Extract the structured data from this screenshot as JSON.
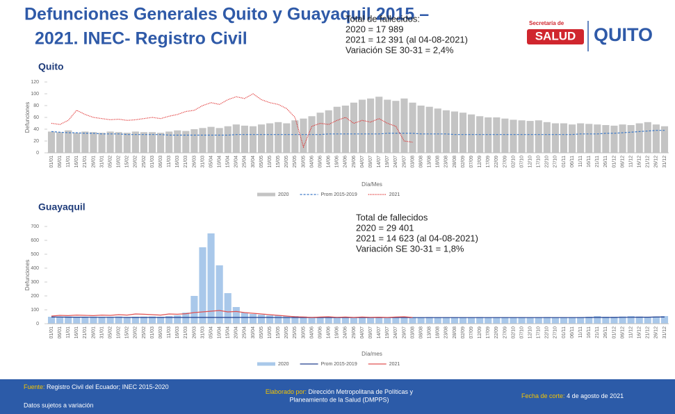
{
  "header": {
    "title_lines": [
      "Defunciones Generales Quito y Guayaquil 2015 –",
      "2021. INEC- Registro Civil"
    ],
    "logo_left_top": "Secretaría de",
    "logo_left_main": "SALUD",
    "logo_right": "QUITO"
  },
  "info_quito": [
    "Total de fallecidos:",
    "2020 = 17 989",
    "2021 = 12 391 (al 04-08-2021)",
    "Variación SE 30-31 = 2,4%"
  ],
  "info_guayaquil": [
    "Total de fallecidos",
    "2020 = 29 401",
    "2021 = 14 623 (al 04-08-2021)",
    "Variación SE 30-31 = 1,8%"
  ],
  "chart_data": [
    {
      "type": "bar",
      "title": "Quito",
      "ylabel": "Defunciones",
      "xlabel": "Día/Mes",
      "ylim": [
        0,
        120
      ],
      "yticks": [
        0,
        20,
        40,
        60,
        80,
        100,
        120
      ],
      "categories": [
        "01/01",
        "06/01",
        "11/01",
        "16/01",
        "21/01",
        "26/01",
        "31/01",
        "05/02",
        "10/02",
        "15/02",
        "20/02",
        "25/02",
        "01/03",
        "06/03",
        "11/03",
        "16/03",
        "21/03",
        "26/03",
        "31/03",
        "05/04",
        "10/04",
        "15/04",
        "20/04",
        "25/04",
        "30/04",
        "05/05",
        "10/05",
        "15/05",
        "20/05",
        "25/05",
        "30/05",
        "04/06",
        "09/06",
        "14/06",
        "19/06",
        "24/06",
        "29/06",
        "04/07",
        "09/07",
        "14/07",
        "19/07",
        "24/07",
        "29/07",
        "03/08",
        "08/08",
        "13/08",
        "18/08",
        "23/08",
        "28/08",
        "02/09",
        "07/09",
        "12/09",
        "17/09",
        "22/09",
        "27/09",
        "02/10",
        "07/10",
        "12/10",
        "17/10",
        "22/10",
        "27/10",
        "01/11",
        "06/11",
        "11/11",
        "16/11",
        "21/11",
        "26/11",
        "01/12",
        "06/12",
        "11/12",
        "16/12",
        "21/12",
        "26/12",
        "31/12"
      ],
      "series": [
        {
          "name": "2020",
          "color": "#c4c4c4",
          "style": "bar",
          "values": [
            36,
            35,
            38,
            34,
            36,
            35,
            34,
            36,
            35,
            34,
            36,
            35,
            35,
            34,
            36,
            38,
            37,
            40,
            42,
            44,
            42,
            45,
            48,
            46,
            45,
            48,
            50,
            52,
            50,
            55,
            58,
            62,
            68,
            72,
            78,
            80,
            85,
            90,
            92,
            95,
            90,
            88,
            92,
            85,
            80,
            78,
            75,
            72,
            70,
            68,
            65,
            62,
            60,
            60,
            58,
            56,
            55,
            54,
            55,
            52,
            50,
            50,
            48,
            50,
            49,
            48,
            47,
            46,
            48,
            47,
            50,
            52,
            48,
            45
          ]
        },
        {
          "name": "Prom 2015-2019",
          "color": "#3a78c8",
          "style": "dashed",
          "values": [
            36,
            35,
            34,
            34,
            33,
            33,
            32,
            32,
            32,
            31,
            31,
            31,
            31,
            31,
            30,
            30,
            30,
            30,
            30,
            30,
            30,
            30,
            31,
            31,
            31,
            31,
            31,
            31,
            31,
            31,
            31,
            31,
            31,
            32,
            32,
            32,
            32,
            32,
            32,
            32,
            33,
            33,
            33,
            33,
            32,
            32,
            32,
            32,
            31,
            31,
            31,
            31,
            31,
            31,
            31,
            31,
            31,
            31,
            31,
            31,
            31,
            31,
            31,
            32,
            32,
            32,
            33,
            33,
            34,
            35,
            36,
            37,
            38,
            38
          ]
        },
        {
          "name": "2021",
          "color": "#e03030",
          "style": "dotted",
          "values": [
            50,
            48,
            55,
            72,
            65,
            60,
            58,
            56,
            57,
            55,
            56,
            58,
            60,
            58,
            62,
            65,
            70,
            72,
            80,
            85,
            82,
            90,
            95,
            92,
            100,
            90,
            85,
            82,
            75,
            60,
            10,
            45,
            50,
            48,
            55,
            60,
            50,
            55,
            52,
            58,
            50,
            45,
            20,
            18,
            null,
            null,
            null,
            null,
            null,
            null,
            null,
            null,
            null,
            null,
            null,
            null,
            null,
            null,
            null,
            null,
            null,
            null,
            null,
            null,
            null,
            null,
            null,
            null,
            null,
            null,
            null,
            null,
            null,
            null
          ]
        }
      ]
    },
    {
      "type": "bar",
      "title": "Guayaquil",
      "ylabel": "Defunciones",
      "xlabel": "Día/mes",
      "ylim": [
        0,
        700
      ],
      "yticks": [
        0,
        100,
        200,
        300,
        400,
        500,
        600,
        700
      ],
      "categories": [
        "01/01",
        "06/01",
        "11/01",
        "16/01",
        "21/01",
        "26/01",
        "31/01",
        "05/02",
        "10/02",
        "15/02",
        "20/02",
        "25/02",
        "01/03",
        "06/03",
        "11/03",
        "16/03",
        "21/03",
        "26/03",
        "31/03",
        "05/04",
        "10/04",
        "15/04",
        "20/04",
        "25/04",
        "30/04",
        "05/05",
        "10/05",
        "15/05",
        "20/05",
        "25/05",
        "30/05",
        "04/06",
        "09/06",
        "14/06",
        "19/06",
        "24/06",
        "29/06",
        "04/07",
        "09/07",
        "14/07",
        "19/07",
        "24/07",
        "29/07",
        "03/08",
        "08/08",
        "13/08",
        "18/08",
        "23/08",
        "28/08",
        "02/09",
        "07/09",
        "12/09",
        "17/09",
        "22/09",
        "27/09",
        "02/10",
        "07/10",
        "12/10",
        "17/10",
        "22/10",
        "27/10",
        "01/11",
        "06/11",
        "11/11",
        "16/11",
        "21/11",
        "26/11",
        "01/12",
        "06/12",
        "11/12",
        "16/12",
        "21/12",
        "26/12",
        "31/12"
      ],
      "series": [
        {
          "name": "2020",
          "color": "#a9c8ea",
          "style": "bar",
          "values": [
            50,
            48,
            52,
            50,
            49,
            51,
            50,
            50,
            52,
            48,
            50,
            51,
            52,
            50,
            55,
            60,
            80,
            200,
            550,
            650,
            420,
            220,
            120,
            80,
            70,
            65,
            60,
            58,
            55,
            55,
            52,
            50,
            50,
            48,
            50,
            48,
            48,
            48,
            47,
            48,
            46,
            47,
            48,
            47,
            46,
            48,
            47,
            46,
            47,
            46,
            47,
            48,
            46,
            47,
            46,
            46,
            47,
            46,
            47,
            48,
            46,
            46,
            47,
            48,
            50,
            55,
            50,
            50,
            52,
            55,
            52,
            50,
            52,
            55
          ]
        },
        {
          "name": "Prom 2015-2019",
          "color": "#1f3c8c",
          "style": "solid",
          "values": [
            48,
            48,
            47,
            47,
            47,
            46,
            46,
            46,
            46,
            45,
            45,
            45,
            45,
            45,
            45,
            45,
            45,
            45,
            45,
            45,
            45,
            45,
            45,
            45,
            45,
            45,
            45,
            44,
            44,
            44,
            44,
            44,
            44,
            44,
            44,
            44,
            44,
            44,
            44,
            44,
            44,
            44,
            44,
            44,
            44,
            44,
            44,
            44,
            44,
            44,
            44,
            44,
            44,
            44,
            44,
            44,
            44,
            44,
            44,
            44,
            44,
            44,
            44,
            44,
            45,
            45,
            45,
            45,
            46,
            46,
            47,
            47,
            48,
            48
          ]
        },
        {
          "name": "2021",
          "color": "#e05050",
          "style": "solid",
          "values": [
            55,
            60,
            58,
            62,
            60,
            58,
            62,
            60,
            65,
            62,
            70,
            68,
            65,
            62,
            70,
            68,
            72,
            80,
            85,
            90,
            95,
            85,
            88,
            80,
            75,
            70,
            65,
            60,
            55,
            50,
            48,
            45,
            48,
            50,
            46,
            48,
            45,
            48,
            46,
            47,
            45,
            48,
            50,
            45,
            null,
            null,
            null,
            null,
            null,
            null,
            null,
            null,
            null,
            null,
            null,
            null,
            null,
            null,
            null,
            null,
            null,
            null,
            null,
            null,
            null,
            null,
            null,
            null,
            null,
            null,
            null,
            null,
            null,
            null
          ]
        }
      ]
    }
  ],
  "footer": {
    "source_label": "Fuente:",
    "source_text": "Registro Civil del Ecuador; INEC 2015-2020",
    "note": "Datos sujetos a variación",
    "made_label": "Elaborado por:",
    "made_lines": [
      "Dirección Metropolitana de Políticas y",
      "Planeamiento de la Salud (DMPPS)"
    ],
    "date_label": "Fecha de corte:",
    "date_text": "4 de agosto de 2021"
  }
}
